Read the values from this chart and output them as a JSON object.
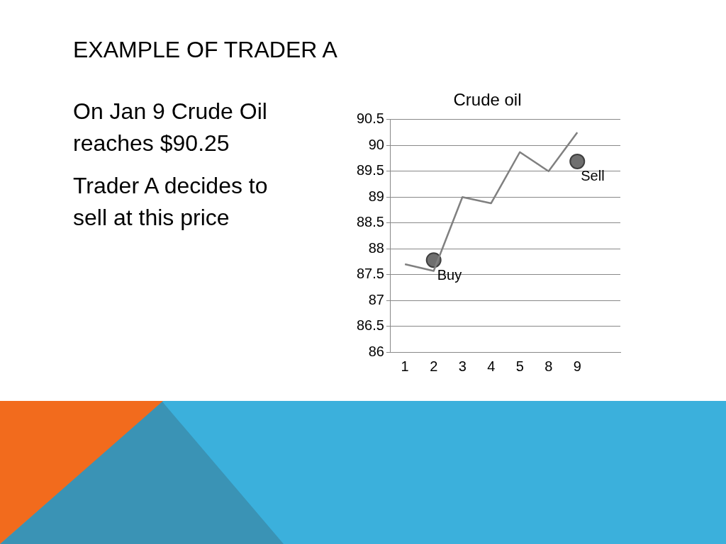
{
  "chart_data": {
    "type": "line",
    "title": "Crude oil",
    "categories": [
      "1",
      "2",
      "3",
      "4",
      "5",
      "8",
      "9",
      null
    ],
    "series": [
      {
        "color": "#808080",
        "marker": "none",
        "values": [
          87.7,
          87.57,
          89.0,
          88.88,
          89.87,
          89.5,
          90.25,
          null
        ]
      },
      {
        "type": "scatter",
        "color": "#6f6f6f",
        "marker": "circle",
        "x": [
          "2",
          "9"
        ],
        "values": [
          87.78,
          89.69
        ]
      }
    ],
    "ylim": [
      86,
      90.5
    ],
    "yticks": [
      86,
      86.5,
      87,
      87.5,
      88,
      88.5,
      89,
      89.5,
      90,
      90.5
    ],
    "grid": "y",
    "legend": false,
    "annotations": [
      "EXAMPLE OF TRADER A",
      "On Jan 9 Crude Oil reaches $90.25",
      "Trader A decides to sell at this price",
      {
        "text": "Buy",
        "x": "2",
        "y": 87.78
      },
      {
        "text": "Sell",
        "x": "9",
        "y": 89.69
      }
    ]
  }
}
